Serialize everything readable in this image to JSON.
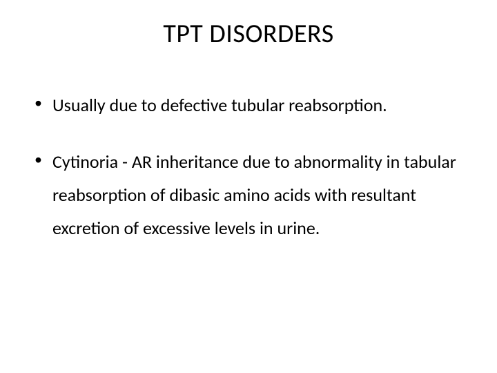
{
  "slide": {
    "title": "TPT DISORDERS",
    "bullets": [
      "Usually due to defective tubular reabsorption.",
      "Cytinoria  - AR inheritance due to abnormality in tabular reabsorption of dibasic amino acids with resultant excretion of excessive levels in urine."
    ],
    "style": {
      "background_color": "#ffffff",
      "text_color": "#000000",
      "title_fontsize": 38,
      "body_fontsize": 26,
      "font_family": "Calibri"
    }
  }
}
